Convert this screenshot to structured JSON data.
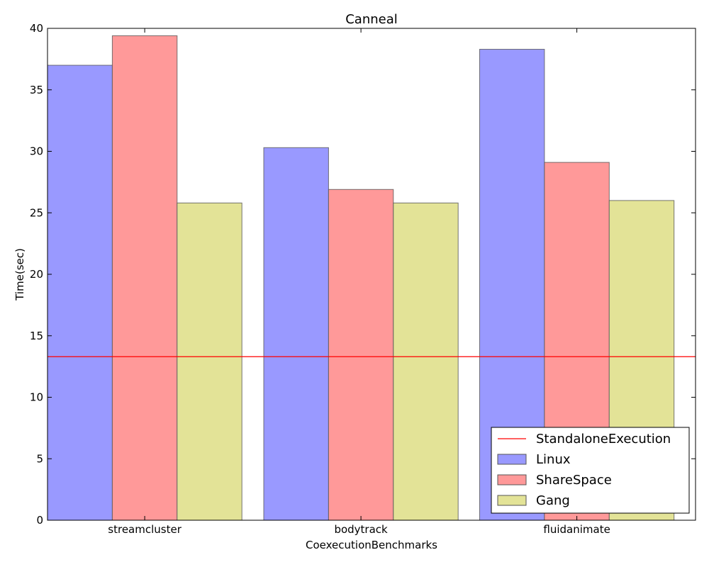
{
  "chart_data": {
    "type": "bar",
    "title": "Canneal",
    "xlabel": "CoexecutionBenchmarks",
    "ylabel": "Time(sec)",
    "categories": [
      "streamcluster",
      "bodytrack",
      "fluidanimate"
    ],
    "series": [
      {
        "name": "Linux",
        "values": [
          37.0,
          30.3,
          38.3
        ],
        "color": "#9999ff"
      },
      {
        "name": "ShareSpace",
        "values": [
          39.4,
          26.9,
          29.1
        ],
        "color": "#ff9999"
      },
      {
        "name": "Gang",
        "values": [
          25.8,
          25.8,
          26.0
        ],
        "color": "#e3e397"
      }
    ],
    "reference_line": {
      "name": "StandaloneExecution",
      "value": 13.3,
      "color": "#ff0000"
    },
    "ylim": [
      0,
      40
    ],
    "yticks": [
      0,
      5,
      10,
      15,
      20,
      25,
      30,
      35,
      40
    ],
    "grid": false,
    "legend_position": "lower-right"
  }
}
